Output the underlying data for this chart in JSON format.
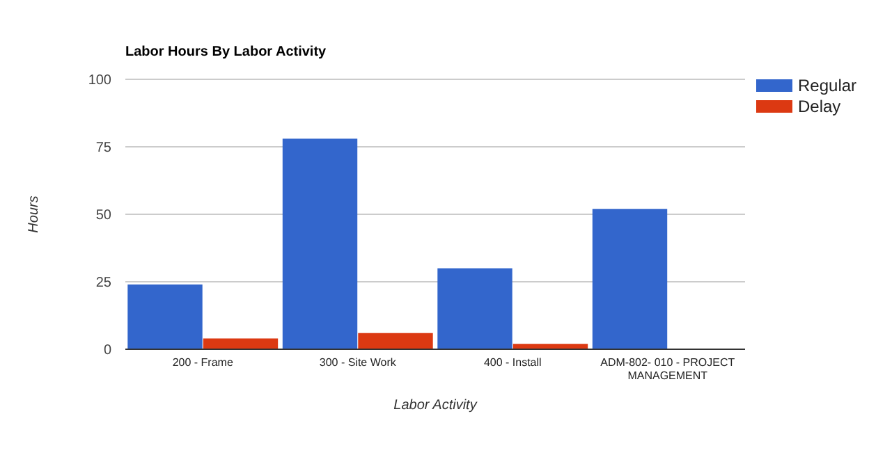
{
  "chart_data": {
    "type": "bar",
    "title": "Labor Hours By Labor Activity",
    "xlabel": "Labor Activity",
    "ylabel": "Hours",
    "categories": [
      "200 - Frame",
      "300 - Site Work",
      "400 - Install",
      "ADM-802- 010 - PROJECT MANAGEMENT"
    ],
    "series": [
      {
        "name": "Regular",
        "color": "#3366cc",
        "values": [
          24,
          78,
          30,
          52
        ]
      },
      {
        "name": "Delay",
        "color": "#dc3912",
        "values": [
          4,
          6,
          2,
          0
        ]
      }
    ],
    "ylim": [
      0,
      100
    ],
    "yticks": [
      0,
      25,
      50,
      75,
      100
    ],
    "grid": "y",
    "legend": "top right"
  }
}
